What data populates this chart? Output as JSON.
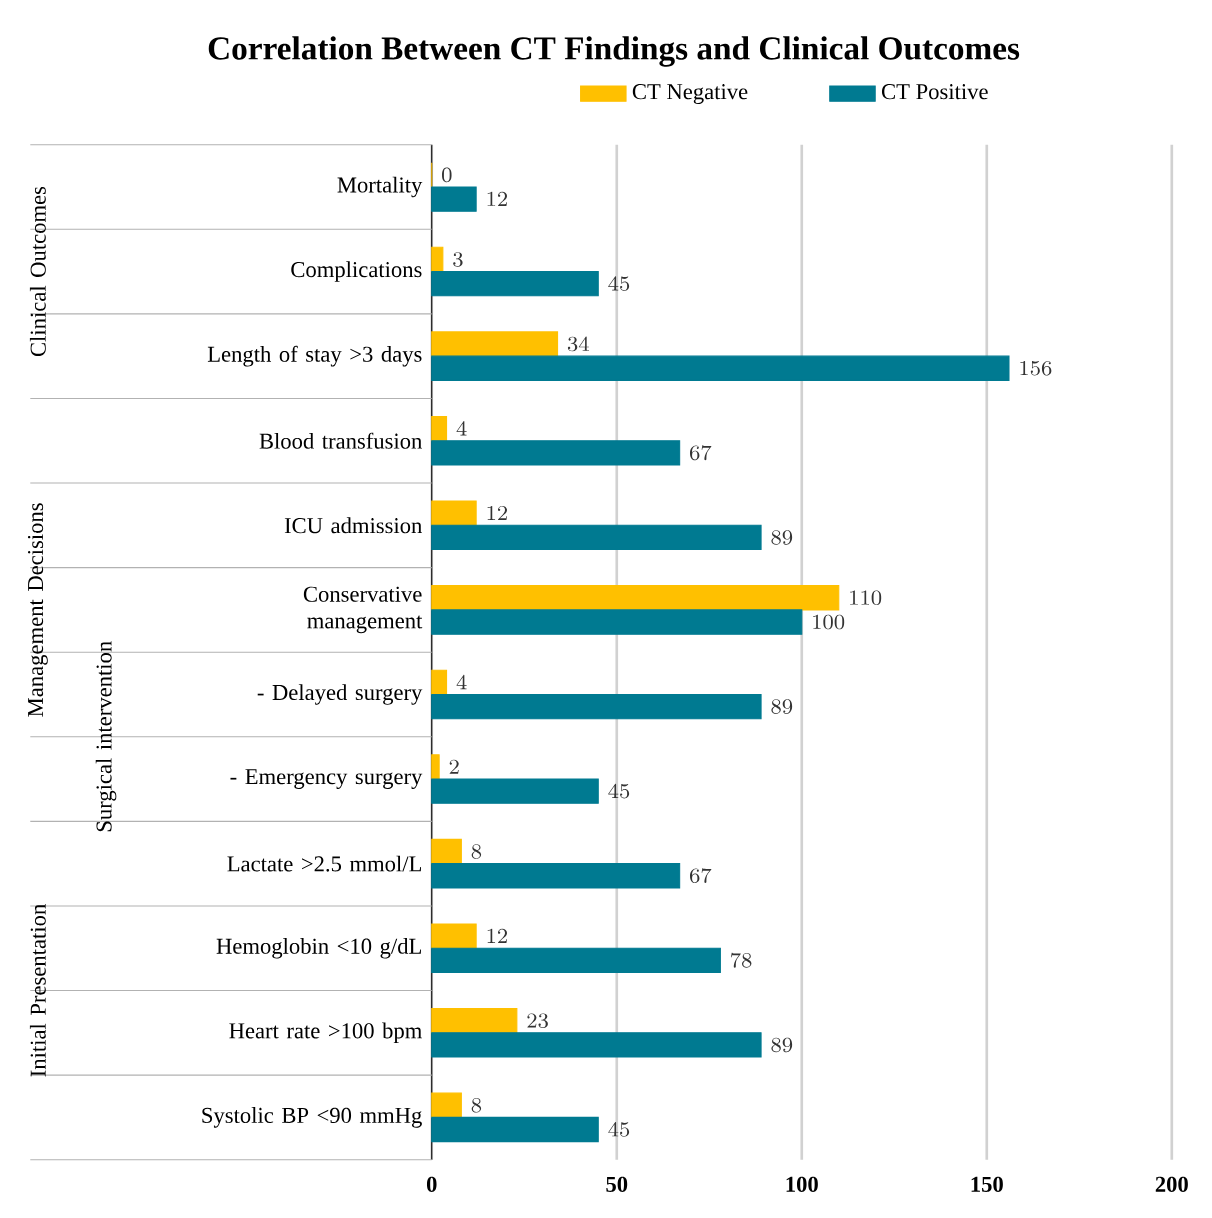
{
  "chart_data": {
    "type": "bar",
    "orientation": "horizontal",
    "title": "Correlation Between CT Findings and Clinical Outcomes",
    "categories": [
      "Mortality",
      "Complications",
      "Length of stay >3 days",
      "Blood transfusion",
      "ICU admission",
      "Conservative management",
      "- Delayed surgery",
      "- Emergency surgery",
      "Lactate >2.5 mmol/L",
      "Hemoglobin <10 g/dL",
      "Heart rate >100 bpm",
      "Systolic BP <90 mmHg"
    ],
    "series": [
      {
        "name": "CT Negative",
        "color": "#ffc000",
        "values": [
          0,
          3,
          34,
          4,
          12,
          110,
          4,
          2,
          8,
          12,
          23,
          8
        ]
      },
      {
        "name": "CT Positive",
        "color": "#007a91",
        "values": [
          12,
          45,
          156,
          67,
          89,
          100,
          89,
          45,
          67,
          78,
          89,
          45
        ]
      }
    ],
    "annotations": [
      "Clinical Outcomes",
      "Management Decisions",
      "Initial Presentation",
      "Surgical intervention"
    ],
    "xlim": [
      0,
      200
    ],
    "xticks": [
      0,
      50,
      100,
      150,
      200
    ],
    "grid": "x",
    "legend": "top",
    "data_labels": true
  }
}
